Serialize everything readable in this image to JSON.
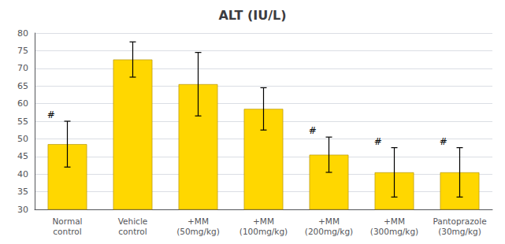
{
  "chart_data": {
    "type": "bar",
    "title": "ALT (IU/L)",
    "categories": [
      "Normal\ncontrol",
      "Vehicle\ncontrol",
      "+MM\n(50mg/kg)",
      "+MM\n(100mg/kg)",
      "+MM\n(200mg/kg)",
      "+MM\n(300mg/kg)",
      "Pantoprazole\n(30mg/kg)"
    ],
    "values": [
      48.5,
      72.5,
      65.5,
      58.5,
      45.5,
      40.5,
      40.5
    ],
    "errors": [
      6.5,
      5.0,
      9.0,
      6.0,
      5.0,
      7.0,
      7.0
    ],
    "color": "#FFD700",
    "annotations": [
      {
        "category": "Normal\ncontrol",
        "text": "#"
      },
      {
        "category": "+MM\n(200mg/kg)",
        "text": "#"
      },
      {
        "category": "+MM\n(300mg/kg)",
        "text": "#"
      },
      {
        "category": "Pantoprazole\n(30mg/kg)",
        "text": "#"
      }
    ],
    "ylim": [
      30,
      80
    ],
    "yticks": [
      30,
      35,
      40,
      45,
      50,
      55,
      60,
      65,
      70,
      75,
      80
    ],
    "grid": true
  }
}
